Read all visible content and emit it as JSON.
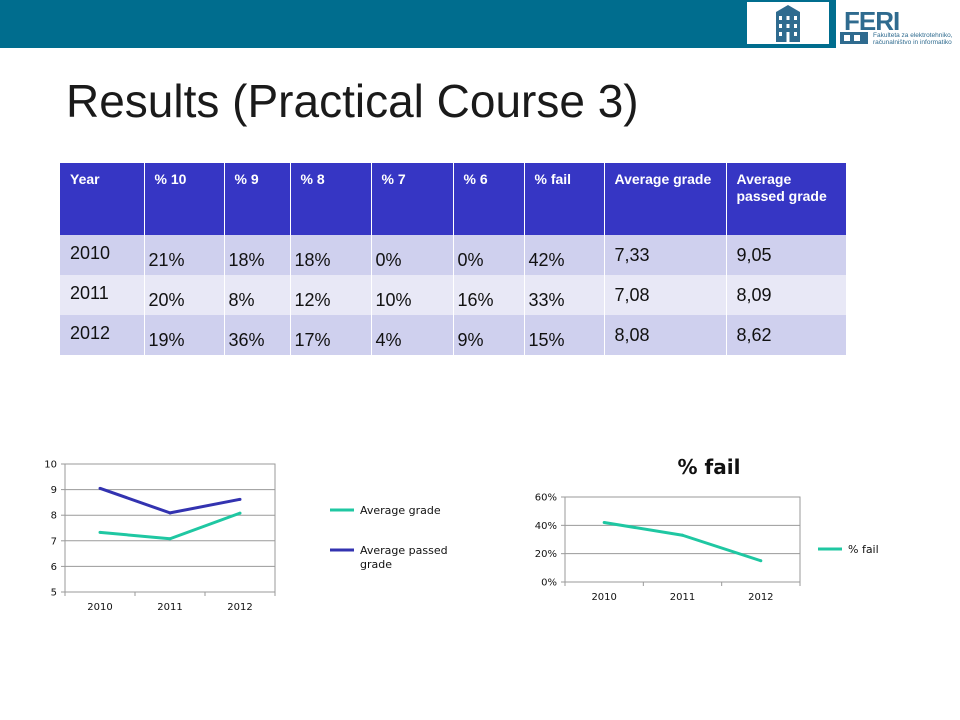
{
  "header": {
    "logo_text": "FERI",
    "logo_sub": "Fakulteta za elektrotehniko, računalništvo in informatiko"
  },
  "title": "Results (Practical Course 3)",
  "table": {
    "headers": [
      "Year",
      "% 10",
      "% 9",
      "% 8",
      "% 7",
      "% 6",
      "% fail",
      "Average grade",
      "Average passed grade"
    ],
    "rows": [
      [
        "2010",
        "21%",
        "18%",
        "18%",
        "0%",
        "0%",
        "42%",
        "7,33",
        "9,05"
      ],
      [
        "2011",
        "20%",
        "8%",
        "12%",
        "10%",
        "16%",
        "33%",
        "7,08",
        "8,09"
      ],
      [
        "2012",
        "19%",
        "36%",
        "17%",
        "4%",
        "9%",
        "15%",
        "8,08",
        "8,62"
      ]
    ]
  },
  "colors": {
    "topbar": "#006d8e",
    "table_header": "#3636c4",
    "row_dark": "#cfd0ee",
    "row_light": "#e8e8f6",
    "teal_series": "#1fc7a2",
    "blue_series": "#3333b0"
  },
  "chart_data": [
    {
      "type": "line",
      "title": "",
      "categories": [
        "2010",
        "2011",
        "2012"
      ],
      "series": [
        {
          "name": "Average grade",
          "values": [
            7.33,
            7.08,
            8.08
          ],
          "color": "#1fc7a2"
        },
        {
          "name": "Average passed grade",
          "values": [
            9.05,
            8.09,
            8.62
          ],
          "color": "#3333b0"
        }
      ],
      "ylim": [
        5,
        10
      ],
      "yticks": [
        "5",
        "6",
        "7",
        "8",
        "9",
        "10"
      ],
      "grid": true,
      "legend": "right"
    },
    {
      "type": "line",
      "title": "% fail",
      "categories": [
        "2010",
        "2011",
        "2012"
      ],
      "series": [
        {
          "name": "% fail",
          "values": [
            0.42,
            0.33,
            0.15
          ],
          "color": "#1fc7a2"
        }
      ],
      "ylim": [
        0,
        0.6
      ],
      "yticks": [
        "0%",
        "20%",
        "40%",
        "60%"
      ],
      "grid": true,
      "legend": "right"
    }
  ]
}
